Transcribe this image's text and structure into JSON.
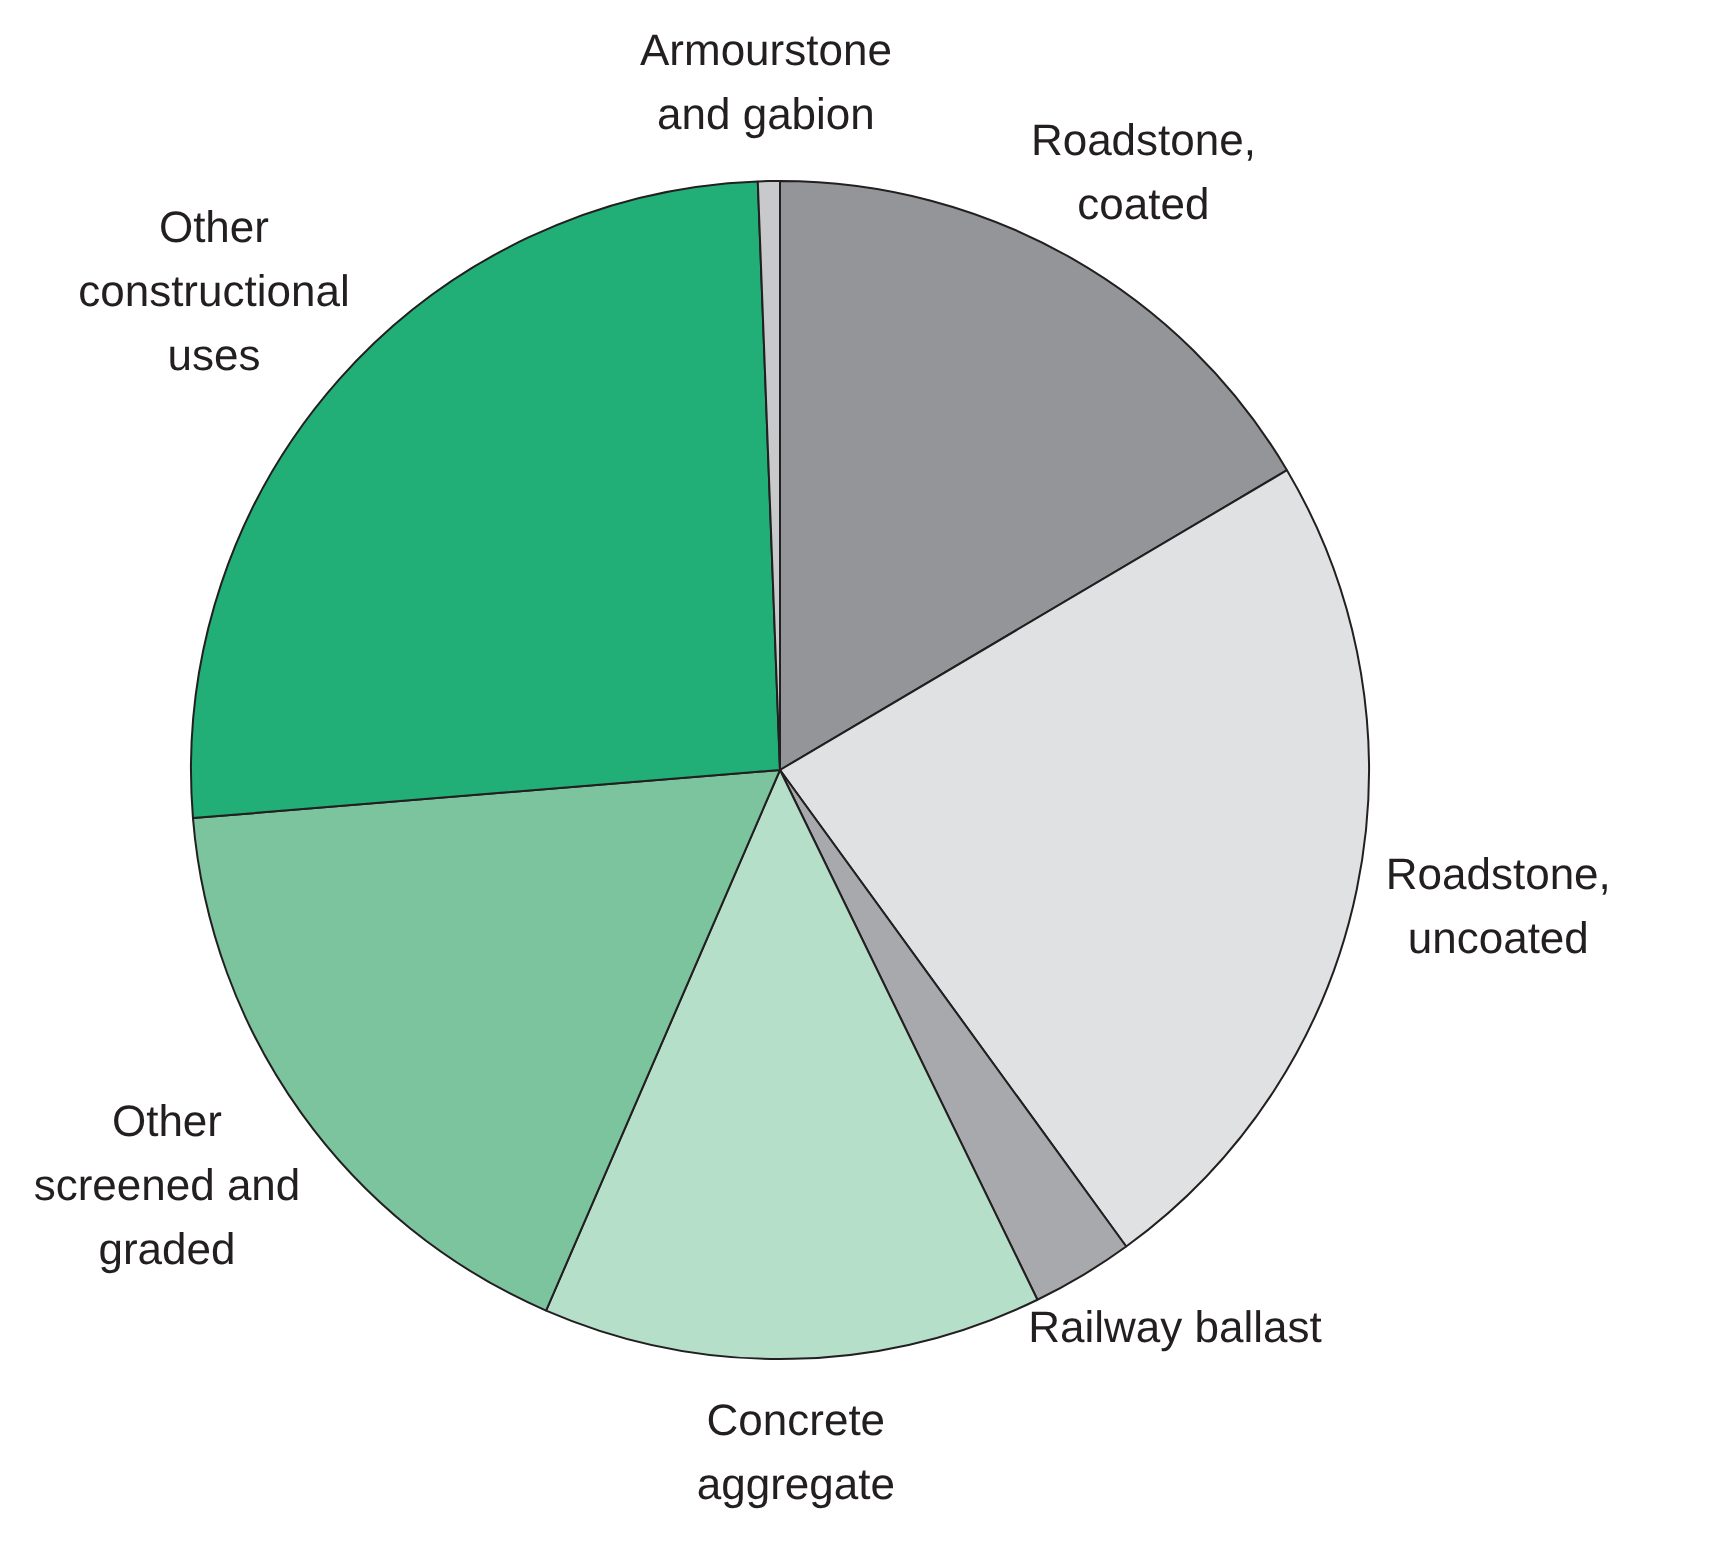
{
  "chart_data": {
    "type": "pie",
    "categories": [
      "Roadstone, coated",
      "Roadstone, uncoated",
      "Railway ballast",
      "Concrete aggregate",
      "Other screened and graded",
      "Other constructional uses",
      "Armourstone and gabion"
    ],
    "values": [
      16.5,
      23.5,
      2.8,
      13.7,
      17.2,
      25.7,
      0.6
    ],
    "colors": [
      "#939598",
      "#e0e1e3",
      "#a7a9ac",
      "#b5dfc9",
      "#7bc49e",
      "#22ae77",
      "#c8c9cb"
    ],
    "legend": false
  }
}
